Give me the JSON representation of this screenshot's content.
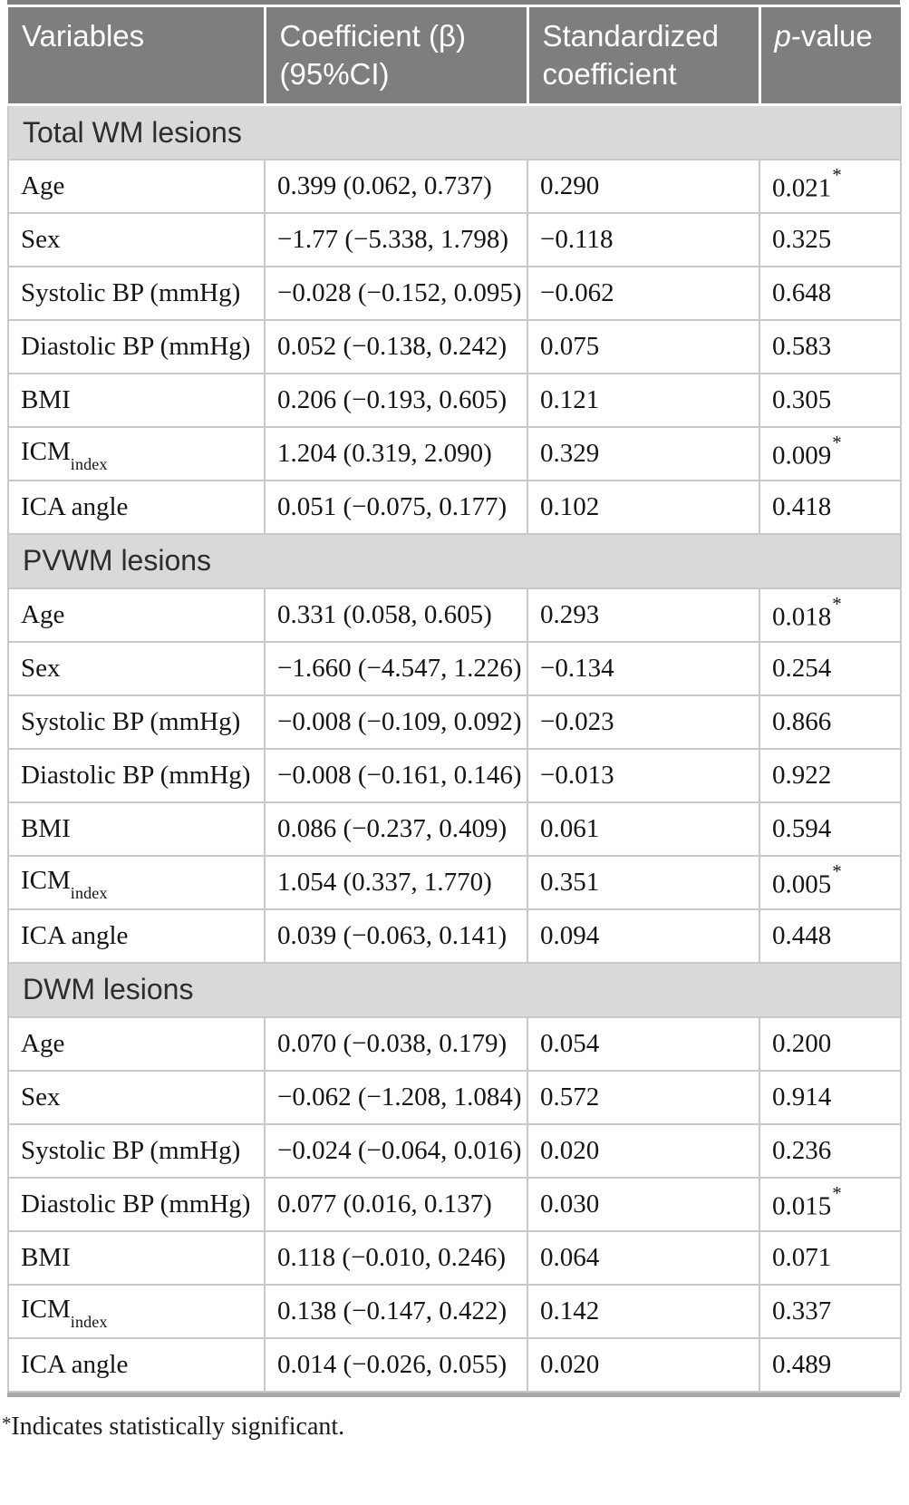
{
  "colors": {
    "header_bg": "#7e7e7e",
    "header_text": "#ffffff",
    "section_bg": "#d9d9d9",
    "cell_border": "#c9c9c9",
    "bottom_rule": "#a9a9a9",
    "body_text": "#151515"
  },
  "table": {
    "columns": [
      {
        "name": "variables",
        "label": "Variables"
      },
      {
        "name": "coefficient",
        "label": "Coefficient (β) (95%CI)"
      },
      {
        "name": "standardized-coefficient",
        "label": "Standardized coefficient"
      },
      {
        "name": "p-value",
        "label": "p-value",
        "italic_prefix": "p",
        "rest": "-value"
      }
    ],
    "sections": [
      {
        "title": "Total WM lesions",
        "rows": [
          {
            "variable": "Age",
            "coefficient": "0.399 (0.062, 0.737)",
            "standardized": "0.290",
            "p": "0.021",
            "significant": true
          },
          {
            "variable": "Sex",
            "coefficient": "−1.77 (−5.338, 1.798)",
            "standardized": "−0.118",
            "p": "0.325",
            "significant": false
          },
          {
            "variable": "Systolic BP (mmHg)",
            "coefficient": "−0.028 (−0.152, 0.095)",
            "standardized": "−0.062",
            "p": "0.648",
            "significant": false
          },
          {
            "variable": "Diastolic BP (mmHg)",
            "coefficient": "0.052 (−0.138, 0.242)",
            "standardized": "0.075",
            "p": "0.583",
            "significant": false
          },
          {
            "variable": "BMI",
            "coefficient": "0.206 (−0.193, 0.605)",
            "standardized": "0.121",
            "p": "0.305",
            "significant": false
          },
          {
            "variable": "ICM",
            "variable_subscript": "index",
            "coefficient": "1.204 (0.319, 2.090)",
            "standardized": "0.329",
            "p": "0.009",
            "significant": true
          },
          {
            "variable": "ICA angle",
            "coefficient": "0.051 (−0.075, 0.177)",
            "standardized": "0.102",
            "p": "0.418",
            "significant": false
          }
        ]
      },
      {
        "title": "PVWM lesions",
        "rows": [
          {
            "variable": "Age",
            "coefficient": "0.331 (0.058, 0.605)",
            "standardized": "0.293",
            "p": "0.018",
            "significant": true
          },
          {
            "variable": "Sex",
            "coefficient": "−1.660 (−4.547, 1.226)",
            "standardized": "−0.134",
            "p": "0.254",
            "significant": false
          },
          {
            "variable": "Systolic BP (mmHg)",
            "coefficient": "−0.008 (−0.109, 0.092)",
            "standardized": "−0.023",
            "p": "0.866",
            "significant": false
          },
          {
            "variable": "Diastolic BP (mmHg)",
            "coefficient": "−0.008 (−0.161, 0.146)",
            "standardized": "−0.013",
            "p": "0.922",
            "significant": false
          },
          {
            "variable": "BMI",
            "coefficient": "0.086 (−0.237, 0.409)",
            "standardized": "0.061",
            "p": "0.594",
            "significant": false
          },
          {
            "variable": "ICM",
            "variable_subscript": "index",
            "coefficient": "1.054 (0.337, 1.770)",
            "standardized": "0.351",
            "p": "0.005",
            "significant": true
          },
          {
            "variable": "ICA angle",
            "coefficient": "0.039 (−0.063, 0.141)",
            "standardized": "0.094",
            "p": "0.448",
            "significant": false
          }
        ]
      },
      {
        "title": "DWM lesions",
        "rows": [
          {
            "variable": "Age",
            "coefficient": "0.070 (−0.038, 0.179)",
            "standardized": "0.054",
            "p": "0.200",
            "significant": false
          },
          {
            "variable": "Sex",
            "coefficient": "−0.062 (−1.208, 1.084)",
            "standardized": "0.572",
            "p": "0.914",
            "significant": false
          },
          {
            "variable": "Systolic BP (mmHg)",
            "coefficient": "−0.024 (−0.064, 0.016)",
            "standardized": "0.020",
            "p": "0.236",
            "significant": false
          },
          {
            "variable": "Diastolic BP (mmHg)",
            "coefficient": "0.077 (0.016, 0.137)",
            "standardized": "0.030",
            "p": "0.015",
            "significant": true
          },
          {
            "variable": "BMI",
            "coefficient": "0.118 (−0.010, 0.246)",
            "standardized": "0.064",
            "p": "0.071",
            "significant": false
          },
          {
            "variable": "ICM",
            "variable_subscript": "index",
            "coefficient": "0.138 (−0.147, 0.422)",
            "standardized": "0.142",
            "p": "0.337",
            "significant": false
          },
          {
            "variable": "ICA angle",
            "coefficient": "0.014 (−0.026, 0.055)",
            "standardized": "0.020",
            "p": "0.489",
            "significant": false
          }
        ]
      }
    ],
    "footnote": {
      "marker": "*",
      "text": "Indicates statistically significant."
    }
  }
}
